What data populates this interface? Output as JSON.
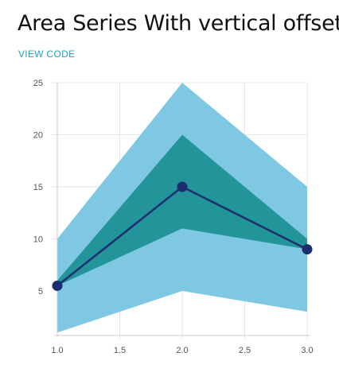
{
  "header": {
    "title": "Area Series With vertical offset",
    "view_code_label": "VIEW CODE"
  },
  "colors": {
    "outer_area": "#7ec8e3",
    "inner_area": "#22949a",
    "line": "#1b2f6e",
    "link": "#1aa3c9",
    "grid": "#e6e6e6"
  },
  "chart_data": {
    "type": "area",
    "xlim": [
      1.0,
      3.0
    ],
    "ylim": [
      1,
      25
    ],
    "x_ticks": [
      "1.0",
      "1.5",
      "2.0",
      "2.5",
      "3.0"
    ],
    "y_ticks": [
      "5",
      "10",
      "15",
      "20",
      "25"
    ],
    "grid": true,
    "series": [
      {
        "kind": "area-range",
        "x": [
          1,
          2,
          3
        ],
        "y0": [
          1,
          5,
          3
        ],
        "y": [
          10,
          25,
          15
        ]
      },
      {
        "kind": "area-range",
        "x": [
          1,
          2,
          3
        ],
        "y0": [
          5.5,
          11,
          9
        ],
        "y": [
          6,
          20,
          10
        ]
      },
      {
        "kind": "line-mark",
        "x": [
          1,
          2,
          3
        ],
        "y": [
          5.5,
          15,
          9
        ]
      }
    ]
  }
}
